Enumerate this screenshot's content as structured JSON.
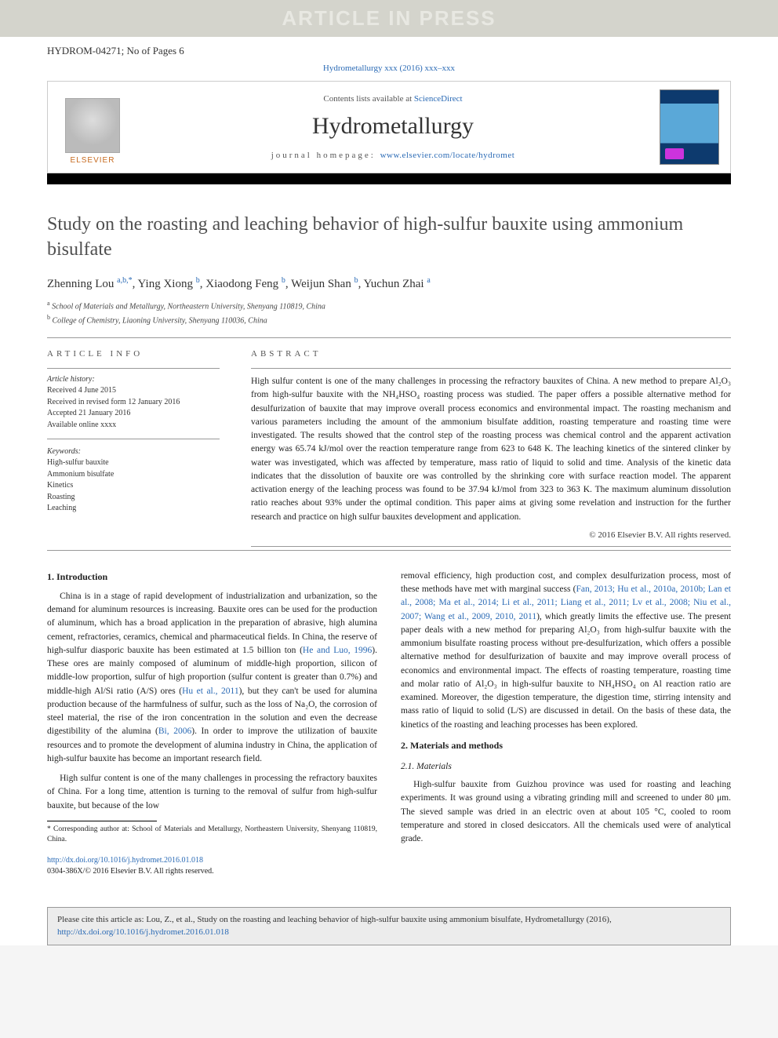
{
  "watermark": "ARTICLE IN PRESS",
  "article_id": "HYDROM-04271; No of Pages 6",
  "citation_header": "Hydrometallurgy xxx (2016) xxx–xxx",
  "header": {
    "contents_prefix": "Contents lists available at ",
    "contents_link": "ScienceDirect",
    "journal": "Hydrometallurgy",
    "homepage_prefix": "journal homepage: ",
    "homepage_url": "www.elsevier.com/locate/hydromet",
    "publisher": "ELSEVIER"
  },
  "title": "Study on the roasting and leaching behavior of high-sulfur bauxite using ammonium bisulfate",
  "authors_html": "Zhenning Lou <sup>a,b,*</sup>, Ying Xiong <sup>b</sup>, Xiaodong Feng <sup>b</sup>, Weijun Shan <sup>b</sup>, Yuchun Zhai <sup>a</sup>",
  "affiliations": [
    {
      "mark": "a",
      "text": "School of Materials and Metallurgy, Northeastern University, Shenyang 110819, China"
    },
    {
      "mark": "b",
      "text": "College of Chemistry, Liaoning University, Shenyang 110036, China"
    }
  ],
  "article_info": {
    "label": "ARTICLE INFO",
    "history_label": "Article history:",
    "history": [
      "Received 4 June 2015",
      "Received in revised form 12 January 2016",
      "Accepted 21 January 2016",
      "Available online xxxx"
    ],
    "keywords_label": "Keywords:",
    "keywords": [
      "High-sulfur bauxite",
      "Ammonium bisulfate",
      "Kinetics",
      "Roasting",
      "Leaching"
    ]
  },
  "abstract": {
    "label": "ABSTRACT",
    "text": "High sulfur content is one of the many challenges in processing the refractory bauxites of China. A new method to prepare Al₂O₃ from high-sulfur bauxite with the NH₄HSO₄ roasting process was studied. The paper offers a possible alternative method for desulfurization of bauxite that may improve overall process economics and environmental impact. The roasting mechanism and various parameters including the amount of the ammonium bisulfate addition, roasting temperature and roasting time were investigated. The results showed that the control step of the roasting process was chemical control and the apparent activation energy was 65.74 kJ/mol over the reaction temperature range from 623 to 648 K. The leaching kinetics of the sintered clinker by water was investigated, which was affected by temperature, mass ratio of liquid to solid and time. Analysis of the kinetic data indicates that the dissolution of bauxite ore was controlled by the shrinking core with surface reaction model. The apparent activation energy of the leaching process was found to be 37.94 kJ/mol from 323 to 363 K. The maximum aluminum dissolution ratio reaches about 93% under the optimal condition. This paper aims at giving some revelation and instruction for the further research and practice on high sulfur bauxites development and application.",
    "copyright": "© 2016 Elsevier B.V. All rights reserved."
  },
  "body": {
    "intro_heading": "1. Introduction",
    "intro_p1": "China is in a stage of rapid development of industrialization and urbanization, so the demand for aluminum resources is increasing. Bauxite ores can be used for the production of aluminum, which has a broad application in the preparation of abrasive, high alumina cement, refractories, ceramics, chemical and pharmaceutical fields. In China, the reserve of high-sulfur diasporic bauxite has been estimated at 1.5 billion ton (",
    "intro_p1_cite1": "He and Luo, 1996",
    "intro_p1b": "). These ores are mainly composed of aluminum of middle-high proportion, silicon of middle-low proportion, sulfur of high proportion (sulfur content is greater than 0.7%) and middle-high Al/Si ratio (A/S) ores (",
    "intro_p1_cite2": "Hu et al., 2011",
    "intro_p1c": "), but they can't be used for alumina production because of the harmfulness of sulfur, such as the loss of Na₂O, the corrosion of steel material, the rise of the iron concentration in the solution and even the decrease digestibility of the alumina (",
    "intro_p1_cite3": "Bi, 2006",
    "intro_p1d": "). In order to improve the utilization of bauxite resources and to promote the development of alumina industry in China, the application of high-sulfur bauxite has become an important research field.",
    "intro_p2": "High sulfur content is one of the many challenges in processing the refractory bauxites of China. For a long time, attention is turning to the removal of sulfur from high-sulfur bauxite, but because of the low",
    "col2_p1a": "removal efficiency, high production cost, and complex desulfurization process, most of these methods have met with marginal success (",
    "col2_cite1": "Fan, 2013; Hu et al., 2010a, 2010b; Lan et al., 2008; Ma et al., 2014; Li et al., 2011; Liang et al., 2011; Lv et al., 2008; Niu et al., 2007; Wang et al., 2009, 2010, 2011",
    "col2_p1b": "), which greatly limits the effective use. The present paper deals with a new method for preparing Al₂O₃ from high-sulfur bauxite with the ammonium bisulfate roasting process without pre-desulfurization, which offers a possible alternative method for desulfurization of bauxite and may improve overall process of economics and environmental impact. The effects of roasting temperature, roasting time and molar ratio of Al₂O₃ in high-sulfur bauxite to NH₄HSO₄ on Al reaction ratio are examined. Moreover, the digestion temperature, the digestion time, stirring intensity and mass ratio of liquid to solid (L/S) are discussed in detail. On the basis of these data, the kinetics of the roasting and leaching processes has been explored.",
    "methods_heading": "2. Materials and methods",
    "materials_subheading": "2.1. Materials",
    "materials_p": "High-sulfur bauxite from Guizhou province was used for roasting and leaching experiments. It was ground using a vibrating grinding mill and screened to under 80 μm. The sieved sample was dried in an electric oven at about 105 °C, cooled to room temperature and stored in closed desiccators. All the chemicals used were of analytical grade."
  },
  "footnote": "* Corresponding author at: School of Materials and Metallurgy, Northeastern University, Shenyang 110819, China.",
  "doi": {
    "url": "http://dx.doi.org/10.1016/j.hydromet.2016.01.018",
    "issn": "0304-386X/© 2016 Elsevier B.V. All rights reserved."
  },
  "cite_box": {
    "prefix": "Please cite this article as: Lou, Z., et al., Study on the roasting and leaching behavior of high-sulfur bauxite using ammonium bisulfate, Hydrometallurgy (2016), ",
    "url": "http://dx.doi.org/10.1016/j.hydromet.2016.01.018"
  },
  "colors": {
    "link": "#2a6ab5",
    "watermark_bg": "#d4d4cc",
    "watermark_fg": "#e8e8e2",
    "citebox_bg": "#ececec",
    "elsevier_orange": "#c66a1f"
  },
  "typography": {
    "title_fontsize": 24,
    "journal_fontsize": 30,
    "body_fontsize": 11.5,
    "abstract_fontsize": 11.5,
    "info_fontsize": 10
  }
}
